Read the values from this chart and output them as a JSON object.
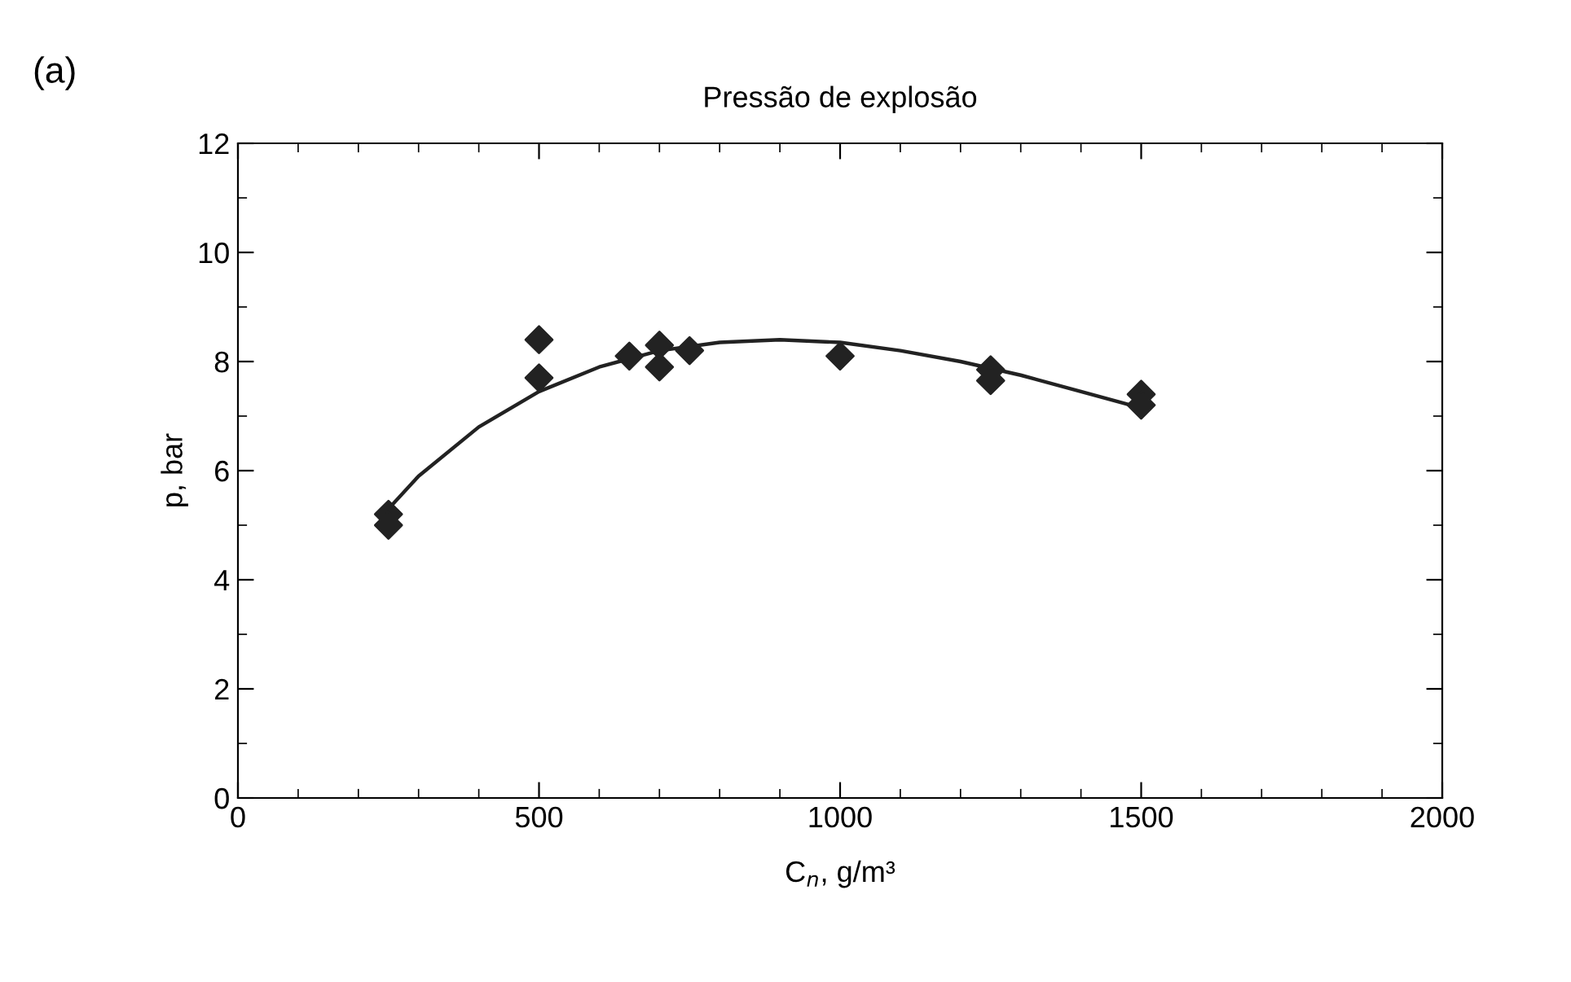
{
  "chart_data": {
    "type": "scatter",
    "title": "Pressão de explosão",
    "xlabel": "C$_{n}$, g/m³",
    "ylabel": "p, bar",
    "annotations": [
      "(a)"
    ],
    "xlim": [
      0,
      2000
    ],
    "xticks": [
      0,
      500,
      1000,
      1500,
      2000
    ],
    "ylim": [
      0,
      12
    ],
    "yticks": [
      0,
      2,
      4,
      6,
      8,
      10,
      12
    ],
    "grid": false,
    "legend": false,
    "series": [
      {
        "marker": "diamond",
        "color": "#222222",
        "x": [
          250,
          250,
          500,
          500,
          650,
          700,
          700,
          750,
          1000,
          1250,
          1250,
          1500,
          1500
        ],
        "values": [
          5.2,
          5.0,
          8.4,
          7.7,
          8.1,
          8.3,
          7.9,
          8.2,
          8.1,
          7.85,
          7.65,
          7.4,
          7.2
        ]
      },
      {
        "type": "line",
        "marker": "none",
        "color": "#222222",
        "line_style": "solid",
        "x": [
          250,
          300,
          400,
          500,
          600,
          700,
          800,
          900,
          1000,
          1100,
          1200,
          1300,
          1400,
          1500
        ],
        "values": [
          5.3,
          5.9,
          6.8,
          7.45,
          7.9,
          8.2,
          8.35,
          8.4,
          8.35,
          8.2,
          8.0,
          7.75,
          7.45,
          7.15
        ]
      }
    ]
  }
}
